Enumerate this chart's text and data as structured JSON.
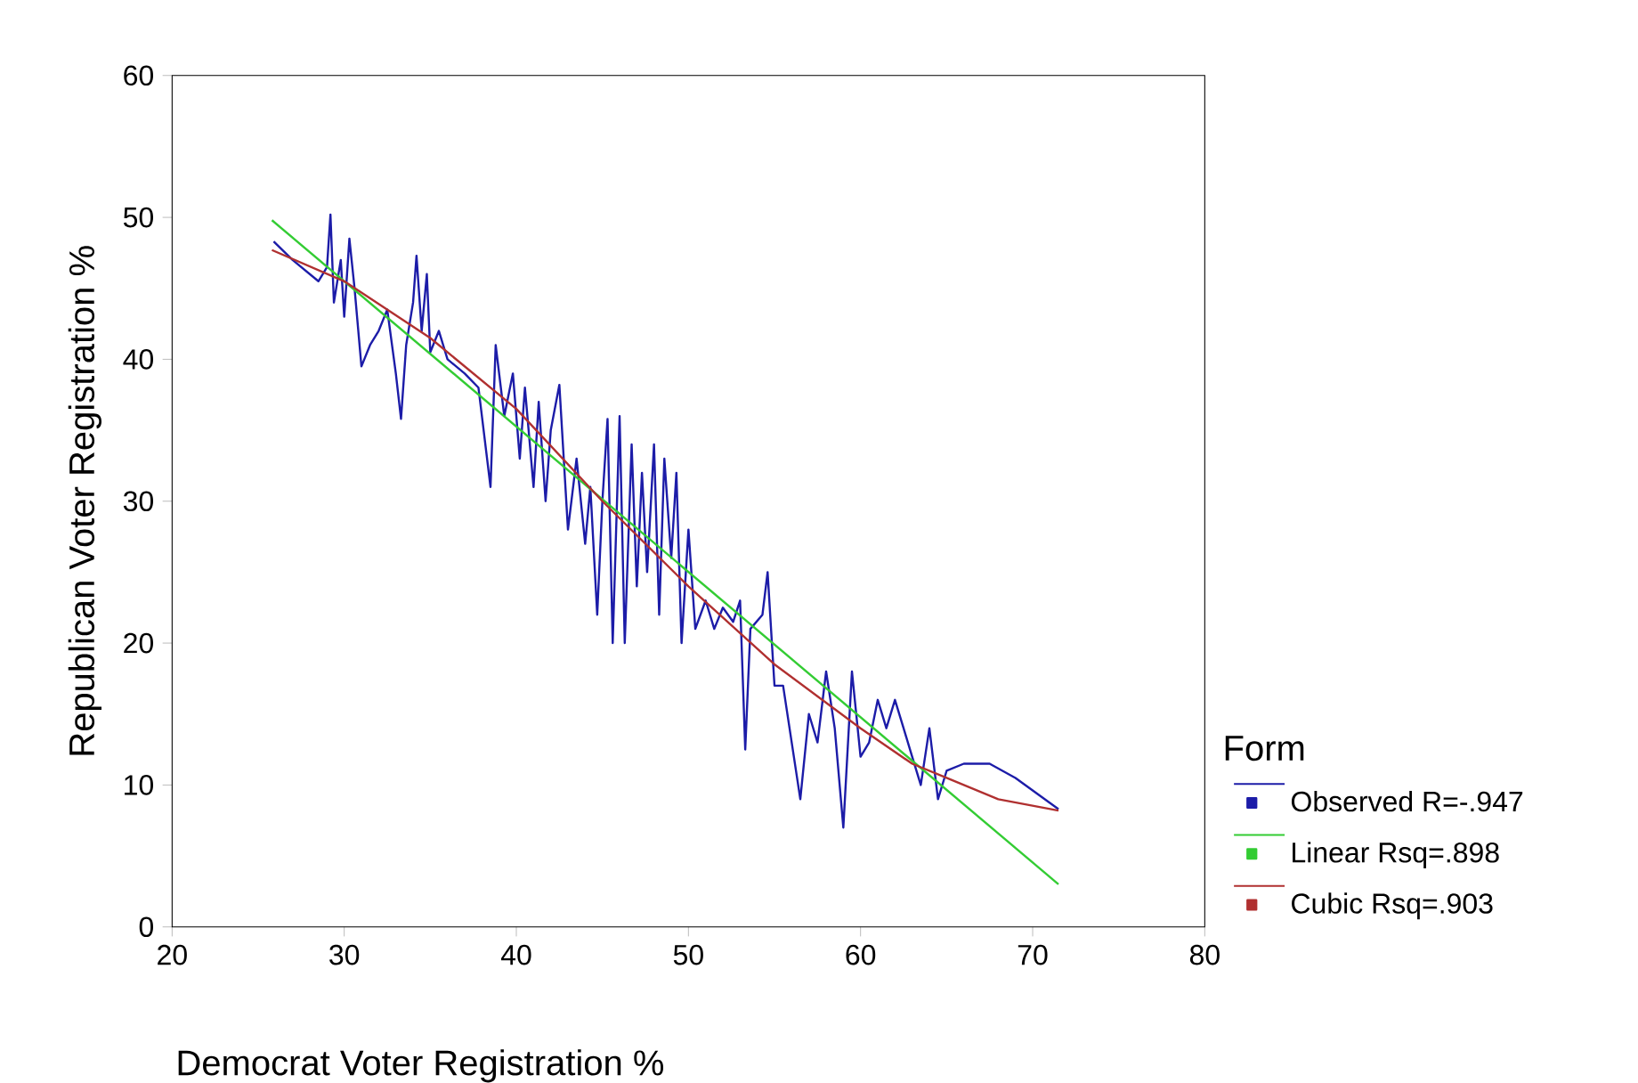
{
  "chart_data": {
    "type": "line",
    "xlabel": "Democrat Voter Registration %",
    "ylabel": "Republican Voter Registration %",
    "legend_title": "Form",
    "legend": "right",
    "grid": false,
    "marker": "none",
    "line_style": "solid",
    "xlim": [
      20,
      80
    ],
    "xticks": [
      20,
      30,
      40,
      50,
      60,
      70,
      80
    ],
    "ylim": [
      0,
      60
    ],
    "yticks": [
      0,
      10,
      20,
      30,
      40,
      50,
      60
    ],
    "series": [
      {
        "name": "Observed R=-.947",
        "color": "#1c1ca8",
        "x": [
          25.9,
          27,
          28.5,
          29,
          29.2,
          29.4,
          29.8,
          30,
          30.3,
          30.6,
          31,
          31.5,
          32,
          32.5,
          33,
          33.3,
          33.6,
          34,
          34.2,
          34.5,
          34.8,
          35,
          35.5,
          36,
          37,
          37.8,
          38.5,
          38.8,
          39.3,
          39.8,
          40.2,
          40.5,
          41,
          41.3,
          41.7,
          42,
          42.5,
          43,
          43.5,
          44,
          44.3,
          44.7,
          45,
          45.3,
          45.6,
          46,
          46.3,
          46.7,
          47,
          47.3,
          47.6,
          48,
          48.3,
          48.6,
          49,
          49.3,
          49.6,
          50,
          50.4,
          51,
          51.5,
          52,
          52.6,
          53,
          53.3,
          53.6,
          54.3,
          54.6,
          55,
          55.5,
          56,
          56.5,
          57,
          57.5,
          58,
          58.5,
          59,
          59.5,
          60,
          60.5,
          61,
          61.5,
          62,
          62.5,
          63,
          63.5,
          64,
          64.5,
          65,
          66,
          67.5,
          69,
          71.5
        ],
        "values": [
          48.3,
          47,
          45.5,
          46.5,
          50.2,
          44,
          47,
          43,
          48.5,
          45,
          39.5,
          41,
          42,
          43.5,
          39,
          35.8,
          41,
          44,
          47.3,
          42,
          46,
          40.5,
          42,
          40,
          39,
          38,
          31,
          41,
          36,
          39,
          33,
          38,
          31,
          37,
          30,
          35,
          38.2,
          28,
          33,
          27,
          31,
          22,
          30,
          35.8,
          20,
          36,
          20,
          34,
          24,
          32,
          25,
          34,
          22,
          33,
          26,
          32,
          20,
          28,
          21,
          23,
          21,
          22.5,
          21.5,
          23,
          12.5,
          21,
          22,
          25,
          17,
          17,
          13,
          9,
          15,
          13,
          18,
          14,
          7,
          18,
          12,
          13,
          16,
          14,
          16,
          14,
          12,
          10,
          14,
          9,
          11,
          11.5,
          11.5,
          10.5,
          8.3
        ]
      },
      {
        "name": "Linear Rsq=.898",
        "color": "#33cc33",
        "x": [
          25.8,
          71.5
        ],
        "values": [
          49.8,
          3.0
        ]
      },
      {
        "name": "Cubic Rsq=.903",
        "color": "#b03030",
        "x": [
          25.8,
          30,
          35,
          40,
          45,
          50,
          55,
          60,
          63,
          65,
          68,
          71.5
        ],
        "values": [
          47.7,
          45.5,
          41.5,
          36.5,
          30,
          24,
          18.5,
          14,
          11.5,
          10.5,
          9,
          8.2
        ]
      }
    ]
  }
}
